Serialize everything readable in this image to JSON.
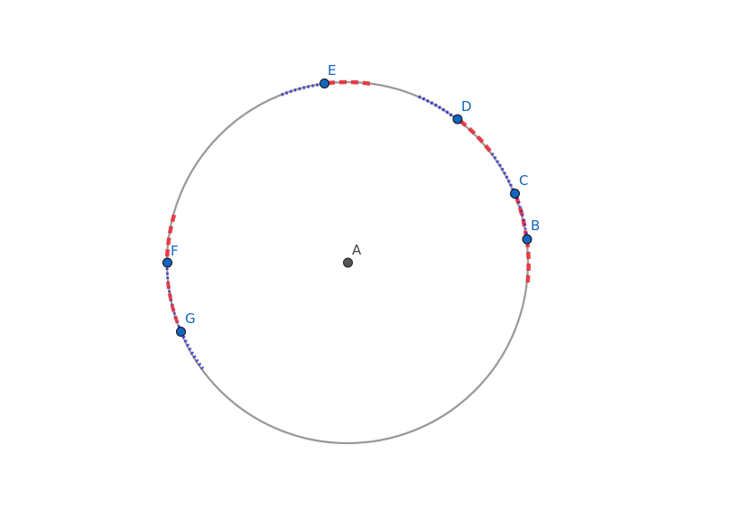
{
  "colors": {
    "background": "#ffffff",
    "circle": "#999999",
    "arc_red": "#e8303a",
    "arc_blue": "#2222dd",
    "point_fill": "#1565c0",
    "center_fill": "#555555",
    "point_label": "#1565c0",
    "center_label": "#444444"
  },
  "center": {
    "label": "A"
  },
  "points": [
    {
      "id": "B",
      "label": "B"
    },
    {
      "id": "C",
      "label": "C"
    },
    {
      "id": "D",
      "label": "D"
    },
    {
      "id": "E",
      "label": "E"
    },
    {
      "id": "F",
      "label": "F"
    },
    {
      "id": "G",
      "label": "G"
    }
  ]
}
